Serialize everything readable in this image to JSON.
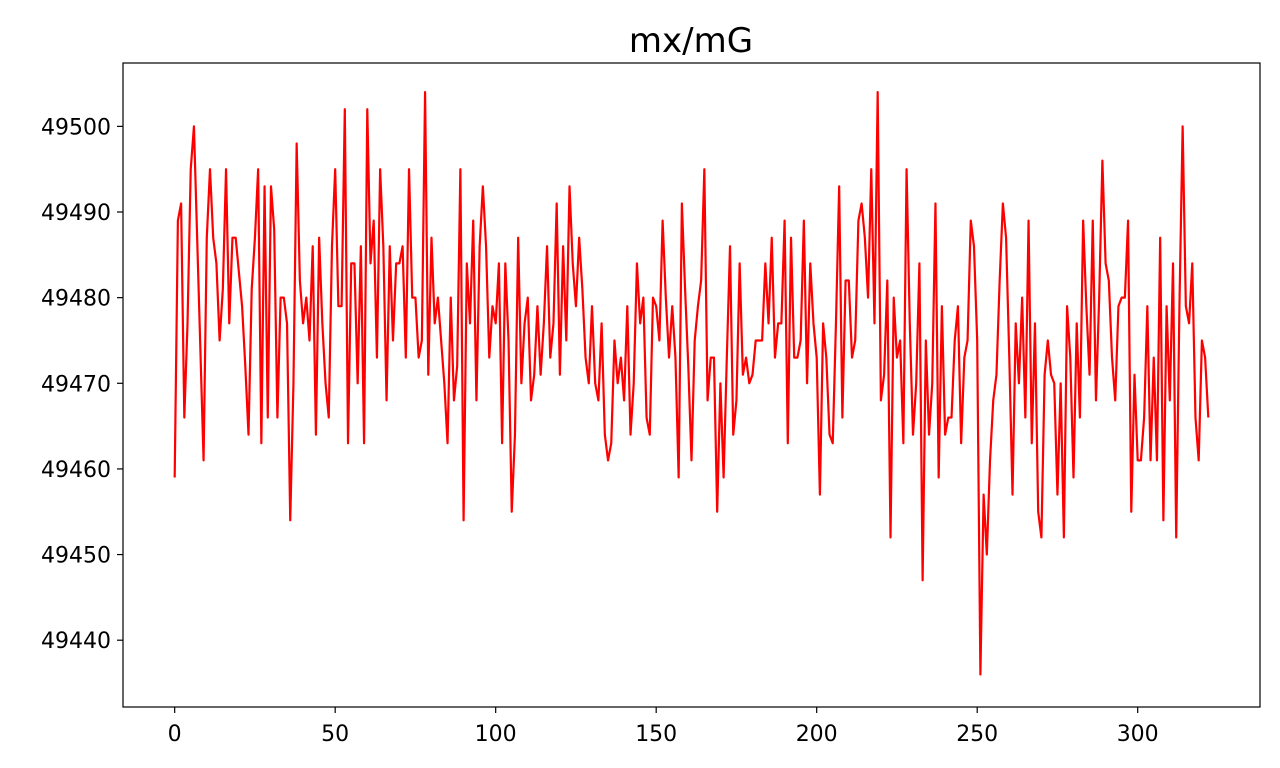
{
  "chart_data": {
    "type": "line",
    "title": "mx/mG",
    "xlabel": "",
    "ylabel": "",
    "xlim": [
      -16.1,
      338.1
    ],
    "ylim": [
      49432.2,
      49507.4
    ],
    "xticks": [
      0,
      50,
      100,
      150,
      200,
      250,
      300
    ],
    "yticks": [
      49440,
      49450,
      49460,
      49470,
      49480,
      49490,
      49500
    ],
    "grid": false,
    "legend": "none",
    "series": [
      {
        "color": "#ff0000",
        "x_start": 0,
        "x_step": 1,
        "values": [
          49459,
          49489,
          49491,
          49466,
          49477,
          49495,
          49500,
          49487,
          49474,
          49461,
          49487,
          49495,
          49487,
          49484,
          49475,
          49481,
          49495,
          49477,
          49487,
          49487,
          49483,
          49479,
          49472,
          49464,
          49481,
          49487,
          49495,
          49463,
          49493,
          49466,
          49493,
          49488,
          49466,
          49480,
          49480,
          49477,
          49454,
          49470,
          49498,
          49482,
          49477,
          49480,
          49475,
          49486,
          49464,
          49487,
          49477,
          49470,
          49466,
          49486,
          49495,
          49479,
          49479,
          49502,
          49463,
          49484,
          49484,
          49470,
          49486,
          49463,
          49502,
          49484,
          49489,
          49473,
          49495,
          49486,
          49468,
          49486,
          49475,
          49484,
          49484,
          49486,
          49473,
          49495,
          49480,
          49480,
          49473,
          49475,
          49504,
          49471,
          49487,
          49477,
          49480,
          49475,
          49470,
          49463,
          49480,
          49468,
          49472,
          49495,
          49454,
          49484,
          49477,
          49489,
          49468,
          49486,
          49493,
          49486,
          49473,
          49479,
          49477,
          49484,
          49463,
          49484,
          49475,
          49455,
          49464,
          49487,
          49470,
          49477,
          49480,
          49468,
          49471,
          49479,
          49471,
          49477,
          49486,
          49473,
          49477,
          49491,
          49471,
          49486,
          49475,
          49493,
          49484,
          49479,
          49487,
          49481,
          49473,
          49470,
          49479,
          49470,
          49468,
          49477,
          49464,
          49461,
          49463,
          49475,
          49470,
          49473,
          49468,
          49479,
          49464,
          49470,
          49484,
          49477,
          49480,
          49466,
          49464,
          49480,
          49479,
          49475,
          49489,
          49480,
          49473,
          49479,
          49473,
          49459,
          49491,
          49481,
          49472,
          49461,
          49475,
          49479,
          49482,
          49495,
          49468,
          49473,
          49473,
          49455,
          49470,
          49459,
          49473,
          49486,
          49464,
          49468,
          49484,
          49471,
          49473,
          49470,
          49471,
          49475,
          49475,
          49475,
          49484,
          49477,
          49487,
          49473,
          49477,
          49477,
          49489,
          49463,
          49487,
          49473,
          49473,
          49475,
          49489,
          49470,
          49484,
          49477,
          49473,
          49457,
          49477,
          49473,
          49464,
          49463,
          49477,
          49493,
          49466,
          49482,
          49482,
          49473,
          49475,
          49489,
          49491,
          49487,
          49480,
          49495,
          49477,
          49504,
          49468,
          49471,
          49482,
          49452,
          49480,
          49473,
          49475,
          49463,
          49495,
          49477,
          49464,
          49470,
          49484,
          49447,
          49475,
          49464,
          49470,
          49491,
          49459,
          49479,
          49464,
          49466,
          49466,
          49475,
          49479,
          49463,
          49473,
          49475,
          49489,
          49486,
          49475,
          49436,
          49457,
          49450,
          49461,
          49468,
          49471,
          49482,
          49491,
          49487,
          49473,
          49457,
          49477,
          49470,
          49480,
          49466,
          49489,
          49463,
          49477,
          49455,
          49452,
          49471,
          49475,
          49471,
          49470,
          49457,
          49470,
          49452,
          49479,
          49473,
          49459,
          49477,
          49466,
          49489,
          49479,
          49471,
          49489,
          49468,
          49480,
          49496,
          49484,
          49482,
          49473,
          49468,
          49479,
          49480,
          49480,
          49489,
          49455,
          49471,
          49461,
          49461,
          49466,
          49479,
          49461,
          49473,
          49461,
          49487,
          49454,
          49479,
          49468,
          49484,
          49452,
          49479,
          49500,
          49479,
          49477,
          49484,
          49466,
          49461,
          49475,
          49473,
          49466
        ]
      }
    ]
  }
}
